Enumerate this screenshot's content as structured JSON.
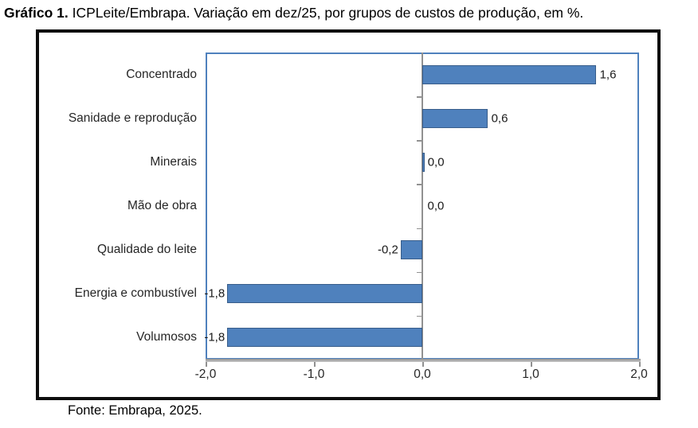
{
  "caption": {
    "bold": "Gráfico 1.",
    "rest": " ICPLeite/Embrapa. Variação em dez/25, por grupos de custos de produção, em %."
  },
  "source": "Fonte: Embrapa, 2025.",
  "chart_data": {
    "type": "bar",
    "orientation": "horizontal",
    "title": "Gráfico 1. ICPLeite/Embrapa. Variação em dez/25, por grupos de custos de produção, em %.",
    "xlabel": "",
    "ylabel": "",
    "categories": [
      "Concentrado",
      "Sanidade e reprodução",
      "Minerais",
      "Mão de obra",
      "Qualidade do leite",
      "Energia e combustível",
      "Volumosos"
    ],
    "values": [
      1.6,
      0.6,
      0.02,
      0.0,
      -0.2,
      -1.8,
      -1.8
    ],
    "data_labels": [
      "1,6",
      "0,6",
      "0,0",
      "0,0",
      "-0,2",
      "-1,8",
      "-1,8"
    ],
    "x_tick_labels": [
      "-2,0",
      "-1,0",
      "0,0",
      "1,0",
      "2,0"
    ],
    "x_tick_values": [
      -2.0,
      -1.0,
      0.0,
      1.0,
      2.0
    ],
    "xlim": [
      -2.0,
      2.0
    ],
    "grid": "off",
    "legend": "none",
    "colors": {
      "bar_fill": "#4F81BD",
      "bar_border": "#385D8A",
      "plot_border": "#4F81BD",
      "axis_line": "#919191",
      "axis_shadow": "#c6c6c6",
      "figure_border": "#0d0d0d",
      "text": "#262626"
    }
  }
}
